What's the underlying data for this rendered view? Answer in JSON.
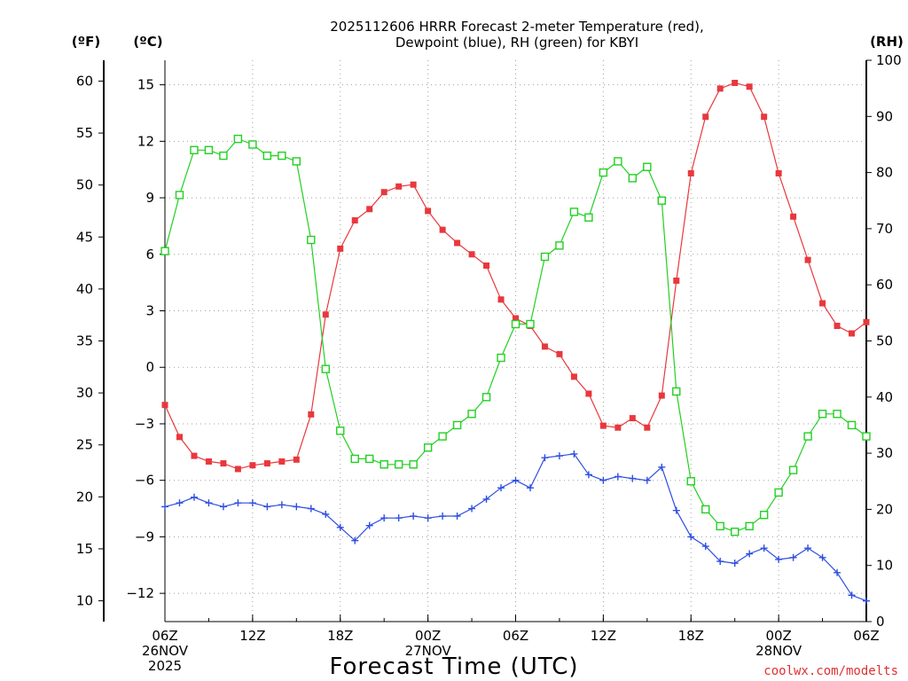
{
  "chart_data": {
    "type": "line",
    "title_lines": [
      "2025112606 HRRR Forecast 2-meter Temperature (red),",
      "Dewpoint (blue), RH (green) for KBYI"
    ],
    "xlabel": "Forecast Time (UTC)",
    "credit": "coolwx.com/modelts",
    "axes": {
      "left_f": {
        "unit_label": "(ºF)",
        "lim": [
          8,
          62
        ],
        "ticks": [
          10,
          15,
          20,
          25,
          30,
          35,
          40,
          45,
          50,
          55,
          60
        ]
      },
      "left_c": {
        "unit_label": "(ºC)",
        "lim": [
          -13.5,
          16.3
        ],
        "ticks": [
          -12,
          -9,
          -6,
          -3,
          0,
          3,
          6,
          9,
          12,
          15
        ]
      },
      "right_rh": {
        "unit_label": "(RH)",
        "lim": [
          0,
          100
        ],
        "ticks": [
          0,
          10,
          20,
          30,
          40,
          50,
          60,
          70,
          80,
          90,
          100
        ]
      },
      "grid": true
    },
    "x_hours": {
      "min": 0,
      "max": 48
    },
    "x_ticks": [
      {
        "hour": 0,
        "lines": [
          "06Z",
          "26NOV",
          "2025"
        ]
      },
      {
        "hour": 6,
        "lines": [
          "12Z"
        ]
      },
      {
        "hour": 12,
        "lines": [
          "18Z"
        ]
      },
      {
        "hour": 18,
        "lines": [
          "00Z",
          "27NOV"
        ]
      },
      {
        "hour": 24,
        "lines": [
          "06Z"
        ]
      },
      {
        "hour": 30,
        "lines": [
          "12Z"
        ]
      },
      {
        "hour": 36,
        "lines": [
          "18Z"
        ]
      },
      {
        "hour": 42,
        "lines": [
          "00Z",
          "28NOV"
        ]
      },
      {
        "hour": 48,
        "lines": [
          "06Z"
        ]
      }
    ],
    "series": [
      {
        "key": "temperature",
        "color": "#e8383d",
        "marker": "filled-square",
        "axis": "left_c",
        "values": [
          -2.0,
          -3.7,
          -4.7,
          -5.0,
          -5.1,
          -5.4,
          -5.2,
          -5.1,
          -5.0,
          -4.9,
          -2.5,
          2.8,
          6.3,
          7.8,
          8.4,
          9.3,
          9.6,
          9.7,
          8.3,
          7.3,
          6.6,
          6.0,
          5.4,
          3.6,
          2.6,
          2.2,
          1.1,
          0.7,
          -0.5,
          -1.4,
          -3.1,
          -3.2,
          -2.7,
          -3.2,
          -1.5,
          4.6,
          10.3,
          13.3,
          14.8,
          15.1,
          14.9,
          13.3,
          10.3,
          8.0,
          5.7,
          3.4,
          2.2,
          1.8,
          2.4
        ]
      },
      {
        "key": "dewpoint",
        "color": "#2e4fe0",
        "marker": "plus",
        "axis": "left_c",
        "values": [
          -7.4,
          -7.2,
          -6.9,
          -7.2,
          -7.4,
          -7.2,
          -7.2,
          -7.4,
          -7.3,
          -7.4,
          -7.5,
          -7.8,
          -8.5,
          -9.2,
          -8.4,
          -8.0,
          -8.0,
          -7.9,
          -8.0,
          -7.9,
          -7.9,
          -7.5,
          -7.0,
          -6.4,
          -6.0,
          -6.4,
          -4.8,
          -4.7,
          -4.6,
          -5.7,
          -6.0,
          -5.8,
          -5.9,
          -6.0,
          -5.3,
          -7.6,
          -9.0,
          -9.5,
          -10.3,
          -10.4,
          -9.9,
          -9.6,
          -10.2,
          -10.1,
          -9.6,
          -10.1,
          -10.9,
          -12.1,
          -12.4
        ]
      },
      {
        "key": "rh",
        "color": "#22d022",
        "marker": "open-square",
        "axis": "right_rh",
        "values": [
          66,
          76,
          84,
          84,
          83,
          86,
          85,
          83,
          83,
          82,
          68,
          45,
          34,
          29,
          29,
          28,
          28,
          28,
          31,
          33,
          35,
          37,
          40,
          47,
          53,
          53,
          65,
          67,
          73,
          72,
          80,
          82,
          79,
          81,
          75,
          41,
          25,
          20,
          17,
          16,
          17,
          19,
          23,
          27,
          33,
          37,
          37,
          35,
          33
        ]
      }
    ]
  }
}
